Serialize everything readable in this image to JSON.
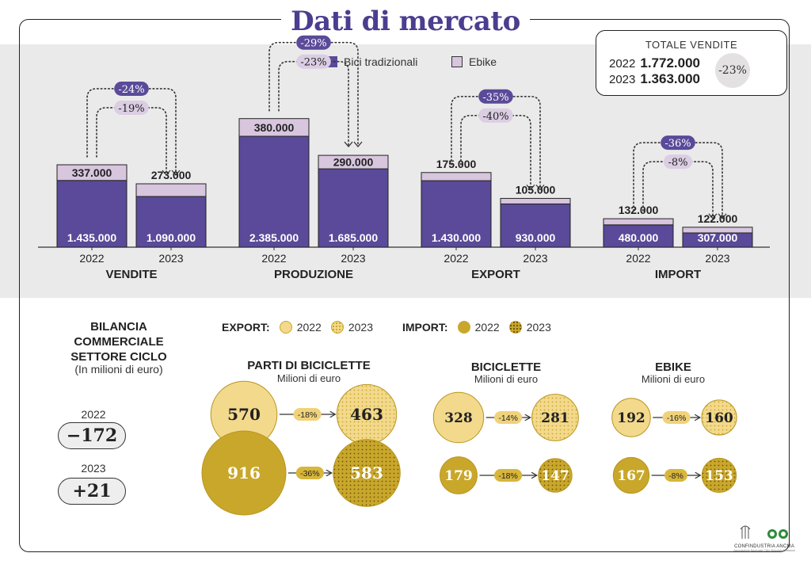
{
  "title": "Dati di mercato",
  "legend": {
    "traditional": "Bici tradizionali",
    "ebike": "Ebike"
  },
  "colors": {
    "traditional": "#5a4a99",
    "ebike": "#d7c6de",
    "pill_dark": "#5a4a99",
    "pill_light": "#dbcde3",
    "gold_light": "#f3d98c",
    "gold_dark": "#c9a72b"
  },
  "totale": {
    "label": "TOTALE VENDITE",
    "rows": [
      {
        "year": "2022",
        "value": "1.772.000"
      },
      {
        "year": "2023",
        "value": "1.363.000"
      }
    ],
    "change": "-23%"
  },
  "chart_data": {
    "type": "bar",
    "stacked": true,
    "groups": [
      {
        "name": "VENDITE",
        "years": [
          "2022",
          "2023"
        ],
        "traditional": [
          1435000,
          1090000
        ],
        "ebike": [
          337000,
          273000
        ],
        "traditional_labels": [
          "1.435.000",
          "1.090.000"
        ],
        "ebike_labels": [
          "337.000",
          "273.000"
        ],
        "change_traditional": "-24%",
        "change_ebike": "-19%"
      },
      {
        "name": "PRODUZIONE",
        "years": [
          "2022",
          "2023"
        ],
        "traditional": [
          2385000,
          1685000
        ],
        "ebike": [
          380000,
          290000
        ],
        "traditional_labels": [
          "2.385.000",
          "1.685.000"
        ],
        "ebike_labels": [
          "380.000",
          "290.000"
        ],
        "change_traditional": "-29%",
        "change_ebike": "-23%"
      },
      {
        "name": "EXPORT",
        "years": [
          "2022",
          "2023"
        ],
        "traditional": [
          1430000,
          930000
        ],
        "ebike": [
          175000,
          105000
        ],
        "traditional_labels": [
          "1.430.000",
          "930.000"
        ],
        "ebike_labels": [
          "175.000",
          "105.000"
        ],
        "change_traditional": "-35%",
        "change_ebike": "-40%"
      },
      {
        "name": "IMPORT",
        "years": [
          "2022",
          "2023"
        ],
        "traditional": [
          480000,
          307000
        ],
        "ebike": [
          132000,
          122000
        ],
        "traditional_labels": [
          "480.000",
          "307.000"
        ],
        "ebike_labels": [
          "132.000",
          "122.000"
        ],
        "change_traditional": "-36%",
        "change_ebike": "-8%"
      }
    ]
  },
  "bilancia": {
    "title_lines": [
      "BILANCIA",
      "COMMERCIALE",
      "SETTORE CICLO"
    ],
    "subtitle": "(In milioni di euro)",
    "rows": [
      {
        "year": "2022",
        "value": "−172"
      },
      {
        "year": "2023",
        "value": "+21"
      }
    ]
  },
  "bubble_legend": {
    "export_label": "EXPORT:",
    "import_label": "IMPORT:",
    "y2022": "2022",
    "y2023": "2023"
  },
  "bubbles": [
    {
      "title": "PARTI DI BICICLETTE",
      "subtitle": "Milioni di euro",
      "export": {
        "v2022": 570,
        "v2023": 463,
        "change": "-18%"
      },
      "import": {
        "v2022": 916,
        "v2023": 583,
        "change": "-36%"
      }
    },
    {
      "title": "BICICLETTE",
      "subtitle": "Milioni di euro",
      "export": {
        "v2022": 328,
        "v2023": 281,
        "change": "-14%"
      },
      "import": {
        "v2022": 179,
        "v2023": 147,
        "change": "-18%"
      }
    },
    {
      "title": "EBIKE",
      "subtitle": "Milioni di euro",
      "export": {
        "v2022": 192,
        "v2023": 160,
        "change": "-16%"
      },
      "import": {
        "v2022": 167,
        "v2023": 153,
        "change": "-8%"
      }
    }
  ],
  "logo": {
    "name": "CONFINDUSTRIA ANCMA",
    "tagline": "Associazione Nazionale Ciclo Motociclo Accessori"
  }
}
